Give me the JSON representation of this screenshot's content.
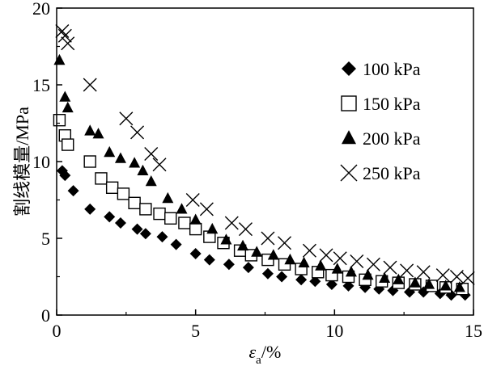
{
  "chart_data": {
    "type": "scatter",
    "xlabel_main": "ε",
    "xlabel_sub": "a",
    "xlabel_rest": "/%",
    "ylabel": "割线模量/MPa",
    "xlim": [
      0,
      15
    ],
    "ylim": [
      0,
      20
    ],
    "x_ticks": [
      "0",
      "5",
      "10",
      "15"
    ],
    "y_ticks": [
      "0",
      "5",
      "10",
      "15",
      "20"
    ],
    "grid": false,
    "legend_position": "right",
    "series": [
      {
        "name": "100 kPa",
        "marker": "diamond-filled",
        "points": [
          [
            0.2,
            9.4
          ],
          [
            0.3,
            9.1
          ],
          [
            0.6,
            8.1
          ],
          [
            1.2,
            6.9
          ],
          [
            1.9,
            6.4
          ],
          [
            2.3,
            6.0
          ],
          [
            2.9,
            5.6
          ],
          [
            3.2,
            5.3
          ],
          [
            3.8,
            5.1
          ],
          [
            4.3,
            4.6
          ],
          [
            5.0,
            4.0
          ],
          [
            5.5,
            3.6
          ],
          [
            6.2,
            3.3
          ],
          [
            6.9,
            3.1
          ],
          [
            7.6,
            2.7
          ],
          [
            8.1,
            2.5
          ],
          [
            8.8,
            2.3
          ],
          [
            9.3,
            2.2
          ],
          [
            9.9,
            2.0
          ],
          [
            10.5,
            1.9
          ],
          [
            11.1,
            1.8
          ],
          [
            11.6,
            1.7
          ],
          [
            12.1,
            1.6
          ],
          [
            12.7,
            1.5
          ],
          [
            13.2,
            1.5
          ],
          [
            13.8,
            1.4
          ],
          [
            14.2,
            1.3
          ],
          [
            14.7,
            1.3
          ]
        ]
      },
      {
        "name": "150 kPa",
        "marker": "square-open",
        "points": [
          [
            0.1,
            12.7
          ],
          [
            0.3,
            11.7
          ],
          [
            0.4,
            11.1
          ],
          [
            1.2,
            10.0
          ],
          [
            1.6,
            8.9
          ],
          [
            2.0,
            8.3
          ],
          [
            2.4,
            7.9
          ],
          [
            2.8,
            7.3
          ],
          [
            3.2,
            6.9
          ],
          [
            3.7,
            6.6
          ],
          [
            4.1,
            6.3
          ],
          [
            4.6,
            6.0
          ],
          [
            5.0,
            5.6
          ],
          [
            5.5,
            5.1
          ],
          [
            6.0,
            4.7
          ],
          [
            6.6,
            4.2
          ],
          [
            7.0,
            3.9
          ],
          [
            7.6,
            3.6
          ],
          [
            8.2,
            3.3
          ],
          [
            8.8,
            3.0
          ],
          [
            9.4,
            2.8
          ],
          [
            9.9,
            2.6
          ],
          [
            10.5,
            2.5
          ],
          [
            11.1,
            2.3
          ],
          [
            11.7,
            2.2
          ],
          [
            12.3,
            2.1
          ],
          [
            12.9,
            2.0
          ],
          [
            13.5,
            1.9
          ],
          [
            14.0,
            1.8
          ],
          [
            14.6,
            1.7
          ]
        ]
      },
      {
        "name": "200 kPa",
        "marker": "triangle-filled",
        "points": [
          [
            0.1,
            16.6
          ],
          [
            0.3,
            14.2
          ],
          [
            0.4,
            13.5
          ],
          [
            1.2,
            12.0
          ],
          [
            1.5,
            11.8
          ],
          [
            1.9,
            10.6
          ],
          [
            2.3,
            10.2
          ],
          [
            2.8,
            9.9
          ],
          [
            3.1,
            9.4
          ],
          [
            3.4,
            8.7
          ],
          [
            4.0,
            7.6
          ],
          [
            4.5,
            6.9
          ],
          [
            5.0,
            6.2
          ],
          [
            5.6,
            5.6
          ],
          [
            6.1,
            4.9
          ],
          [
            6.7,
            4.5
          ],
          [
            7.2,
            4.1
          ],
          [
            7.8,
            3.9
          ],
          [
            8.4,
            3.6
          ],
          [
            8.9,
            3.4
          ],
          [
            9.5,
            3.2
          ],
          [
            10.1,
            3.0
          ],
          [
            10.6,
            2.8
          ],
          [
            11.2,
            2.6
          ],
          [
            11.8,
            2.4
          ],
          [
            12.3,
            2.3
          ],
          [
            12.9,
            2.1
          ],
          [
            13.4,
            2.0
          ],
          [
            14.0,
            1.9
          ],
          [
            14.5,
            1.8
          ]
        ]
      },
      {
        "name": "250 kPa",
        "marker": "cross",
        "points": [
          [
            0.2,
            18.5
          ],
          [
            0.3,
            18.2
          ],
          [
            0.4,
            17.7
          ],
          [
            1.2,
            15.0
          ],
          [
            2.5,
            12.8
          ],
          [
            2.9,
            11.9
          ],
          [
            3.4,
            10.5
          ],
          [
            3.7,
            9.8
          ],
          [
            4.9,
            7.5
          ],
          [
            5.4,
            6.9
          ],
          [
            6.3,
            6.0
          ],
          [
            6.8,
            5.6
          ],
          [
            7.6,
            5.0
          ],
          [
            8.2,
            4.7
          ],
          [
            9.1,
            4.2
          ],
          [
            9.7,
            3.9
          ],
          [
            10.2,
            3.7
          ],
          [
            10.8,
            3.5
          ],
          [
            11.4,
            3.3
          ],
          [
            12.0,
            3.1
          ],
          [
            12.6,
            2.9
          ],
          [
            13.2,
            2.8
          ],
          [
            13.9,
            2.6
          ],
          [
            14.4,
            2.5
          ],
          [
            14.8,
            2.4
          ]
        ]
      }
    ]
  }
}
